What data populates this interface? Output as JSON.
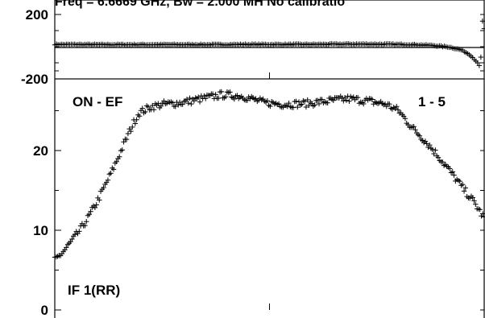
{
  "header_text": "Freq = 6.6669 GHz, Bw = 2.000 MH    No calibratio",
  "labels": {
    "baseline": "ON - EF",
    "scan": "1 - 5",
    "channel": "IF 1(RR)"
  },
  "chart_data": [
    {
      "type": "scatter",
      "panel": "phase",
      "marker": "plus",
      "ylim": [
        -200,
        200
      ],
      "xlim": [
        0,
        1024
      ],
      "yticks": [
        200,
        -200
      ],
      "yticklabels": [
        "200",
        "-200"
      ],
      "grid": false,
      "x": [
        0,
        50,
        100,
        150,
        200,
        250,
        300,
        350,
        400,
        450,
        500,
        550,
        600,
        650,
        700,
        750,
        800,
        850,
        900,
        940,
        970,
        990,
        1005,
        1015,
        1020,
        1024
      ],
      "y": [
        14,
        14,
        13,
        13,
        13,
        13,
        13,
        13,
        13,
        14,
        14,
        14,
        14,
        15,
        16,
        16,
        15,
        13,
        8,
        -2,
        -20,
        -50,
        -90,
        -130,
        160,
        110
      ]
    },
    {
      "type": "scatter",
      "panel": "amplitude",
      "marker": "plus",
      "ylim": [
        0,
        30
      ],
      "xlim": [
        0,
        1024
      ],
      "yticks": [
        0,
        10,
        20
      ],
      "yticklabels": [
        "0",
        "10",
        "20"
      ],
      "grid": false,
      "x": [
        0,
        20,
        40,
        60,
        80,
        100,
        120,
        140,
        160,
        180,
        200,
        230,
        260,
        300,
        350,
        400,
        450,
        500,
        550,
        600,
        650,
        700,
        750,
        790,
        820,
        850,
        880,
        910,
        940,
        970,
        1000,
        1024
      ],
      "y": [
        6.2,
        7.3,
        8.6,
        10.0,
        11.6,
        13.5,
        15.6,
        17.8,
        20.2,
        22.6,
        24.7,
        25.5,
        25.8,
        26.0,
        26.5,
        27.0,
        26.8,
        26.0,
        25.8,
        25.9,
        26.2,
        26.5,
        26.2,
        25.8,
        25.0,
        23.0,
        21.4,
        19.6,
        17.6,
        15.5,
        13.5,
        11.5
      ]
    }
  ]
}
